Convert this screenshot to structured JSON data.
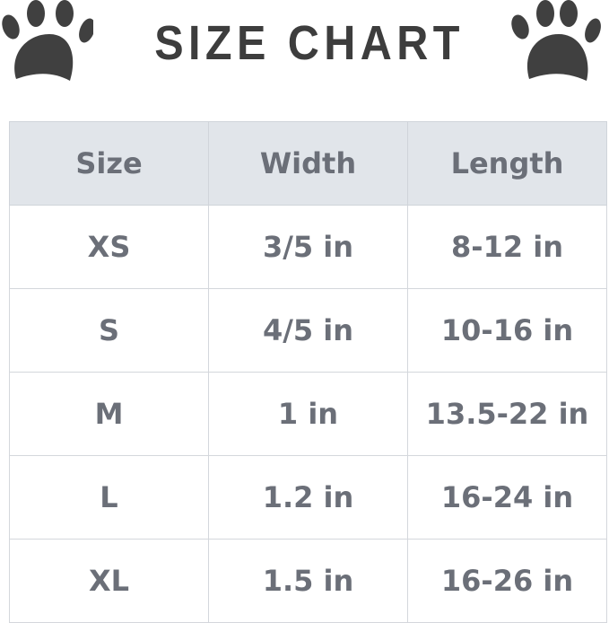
{
  "title": "SIZE CHART",
  "icons": {
    "left": "paw-print-icon",
    "right": "paw-print-icon"
  },
  "colors": {
    "header_bg": "#e1e5ea",
    "text": "#6b6f78",
    "title": "#3d3d3d",
    "paw": "#404040"
  },
  "table": {
    "headers": [
      "Size",
      "Width",
      "Length"
    ],
    "rows": [
      [
        "XS",
        "3/5 in",
        "8-12 in"
      ],
      [
        "S",
        "4/5 in",
        "10-16 in"
      ],
      [
        "M",
        "1 in",
        "13.5-22 in"
      ],
      [
        "L",
        "1.2 in",
        "16-24 in"
      ],
      [
        "XL",
        "1.5 in",
        "16-26 in"
      ]
    ]
  }
}
